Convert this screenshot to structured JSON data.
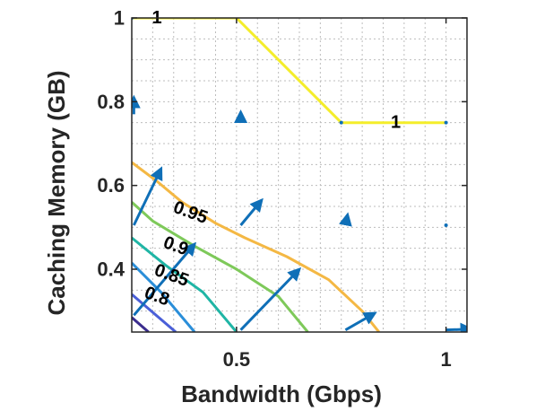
{
  "chart_data": {
    "type": "contour",
    "xlabel": "Bandwidth (Gbps)",
    "ylabel": "Caching Memory (GB)",
    "xlim": [
      0.25,
      1.05
    ],
    "ylim": [
      0.25,
      1.0
    ],
    "x_ticks": [
      0.5,
      1
    ],
    "x_tick_labels": [
      "0.5",
      "1"
    ],
    "y_ticks": [
      0.4,
      0.6,
      0.8,
      1.0
    ],
    "y_tick_labels": [
      "0.4",
      "0.6",
      "0.8",
      "1"
    ],
    "grid": true,
    "contours": [
      {
        "level": 1,
        "label": "1",
        "color": "#f4ed2a",
        "points": [
          [
            0.25,
            1.0
          ],
          [
            0.5,
            1.0
          ],
          [
            0.75,
            0.75
          ],
          [
            1.0,
            0.75
          ]
        ],
        "label_at": [
          [
            0.31,
            1.0
          ],
          [
            0.88,
            0.75
          ]
        ]
      },
      {
        "level": 0.95,
        "label": "0.95",
        "color": "#f4b844",
        "points": [
          [
            0.25,
            0.655
          ],
          [
            0.31,
            0.61
          ],
          [
            0.37,
            0.56
          ],
          [
            0.45,
            0.51
          ],
          [
            0.52,
            0.475
          ],
          [
            0.62,
            0.43
          ],
          [
            0.72,
            0.375
          ],
          [
            0.8,
            0.3
          ],
          [
            0.84,
            0.25
          ]
        ],
        "label_at": [
          [
            0.39,
            0.535
          ]
        ]
      },
      {
        "level": 0.9,
        "label": "0.9",
        "color": "#7ec95a",
        "points": [
          [
            0.25,
            0.56
          ],
          [
            0.3,
            0.515
          ],
          [
            0.4,
            0.455
          ],
          [
            0.5,
            0.4
          ],
          [
            0.6,
            0.335
          ],
          [
            0.67,
            0.25
          ]
        ],
        "label_at": [
          [
            0.355,
            0.455
          ]
        ]
      },
      {
        "level": 0.85,
        "label": "0.85",
        "color": "#1fb5a5",
        "points": [
          [
            0.25,
            0.475
          ],
          [
            0.33,
            0.41
          ],
          [
            0.42,
            0.345
          ],
          [
            0.5,
            0.25
          ]
        ],
        "label_at": [
          [
            0.345,
            0.385
          ]
        ]
      },
      {
        "level": 0.8,
        "label": "0.8",
        "color": "#2a8ed9",
        "points": [
          [
            0.25,
            0.415
          ],
          [
            0.32,
            0.345
          ],
          [
            0.4,
            0.25
          ]
        ],
        "label_at": [
          [
            0.31,
            0.335
          ]
        ]
      },
      {
        "level": 0.75,
        "label": "",
        "color": "#4a5fd8",
        "points": [
          [
            0.25,
            0.34
          ],
          [
            0.32,
            0.28
          ],
          [
            0.355,
            0.25
          ]
        ],
        "label_at": []
      },
      {
        "level": 0.7,
        "label": "",
        "color": "#3b2d8e",
        "points": [
          [
            0.25,
            0.285
          ],
          [
            0.29,
            0.25
          ]
        ],
        "label_at": []
      }
    ],
    "arrows": {
      "color": "#0f6fb7",
      "items": [
        [
          0.255,
          0.77,
          0.0,
          0.04
        ],
        [
          0.255,
          0.505,
          0.065,
          0.135
        ],
        [
          0.255,
          0.29,
          0.145,
          0.17
        ],
        [
          0.51,
          0.755,
          0.0,
          0.02
        ],
        [
          0.51,
          0.505,
          0.05,
          0.06
        ],
        [
          0.51,
          0.255,
          0.14,
          0.145
        ],
        [
          0.76,
          0.505,
          0.005,
          0.025
        ],
        [
          0.76,
          0.255,
          0.07,
          0.04
        ],
        [
          1.0,
          0.505,
          0.0,
          0.005
        ],
        [
          1.0,
          0.255,
          0.06,
          0.002
        ],
        [
          0.25,
          1.0,
          0.0,
          0.002
        ],
        [
          0.75,
          0.75,
          0.0,
          0.002
        ],
        [
          1.0,
          0.75,
          0.0,
          0.002
        ]
      ]
    }
  }
}
